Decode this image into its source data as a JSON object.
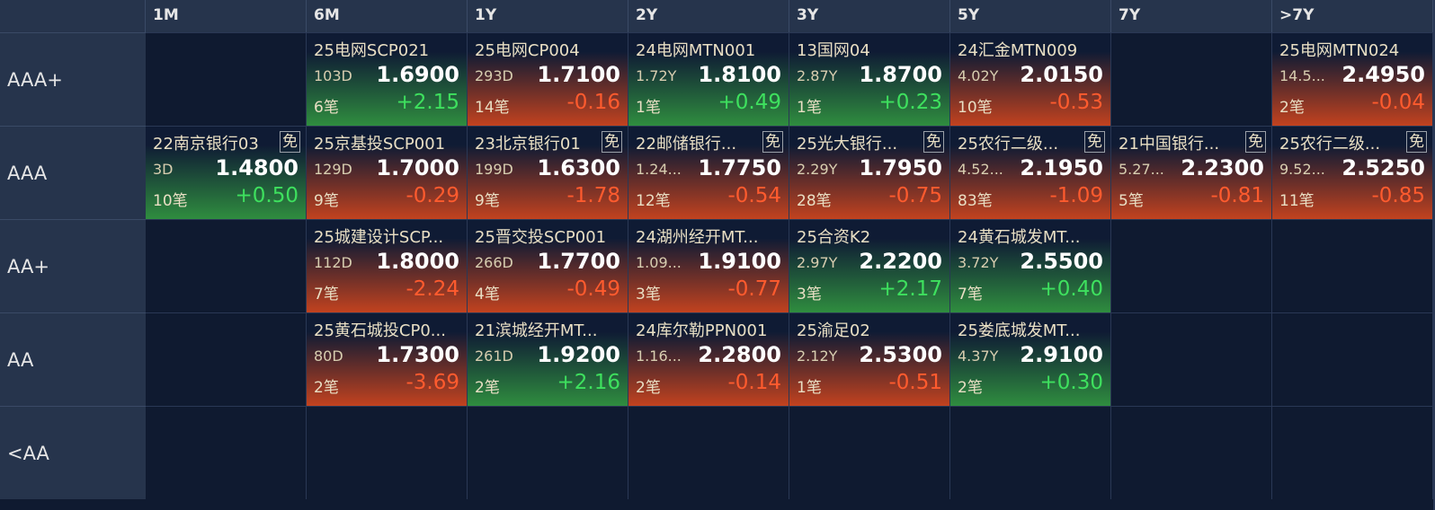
{
  "header": {
    "columns": [
      "1M",
      "6M",
      "1Y",
      "2Y",
      "3Y",
      "5Y",
      "7Y",
      ">7Y"
    ]
  },
  "rows": [
    {
      "label": "AAA+",
      "cells": [
        null,
        {
          "name": "25电网SCP021",
          "term": "103D",
          "price": "1.6900",
          "count": "6笔",
          "change": "+2.15"
        },
        {
          "name": "25电网CP004",
          "term": "293D",
          "price": "1.7100",
          "count": "14笔",
          "change": "-0.16"
        },
        {
          "name": "24电网MTN001",
          "term": "1.72Y",
          "price": "1.8100",
          "count": "1笔",
          "change": "+0.49"
        },
        {
          "name": "13国网04",
          "term": "2.87Y",
          "price": "1.8700",
          "count": "1笔",
          "change": "+0.23"
        },
        {
          "name": "24汇金MTN009",
          "term": "4.02Y",
          "price": "2.0150",
          "count": "10笔",
          "change": "-0.53"
        },
        null,
        {
          "name": "25电网MTN024",
          "term": "14.5...",
          "price": "2.4950",
          "count": "2笔",
          "change": "-0.04"
        }
      ]
    },
    {
      "label": "AAA",
      "cells": [
        {
          "name": "22南京银行03",
          "tag": "免",
          "term": "3D",
          "price": "1.4800",
          "count": "10笔",
          "change": "+0.50"
        },
        {
          "name": "25京基投SCP001",
          "term": "129D",
          "price": "1.7000",
          "count": "9笔",
          "change": "-0.29"
        },
        {
          "name": "23北京银行01",
          "tag": "免",
          "term": "199D",
          "price": "1.6300",
          "count": "9笔",
          "change": "-1.78"
        },
        {
          "name": "22邮储银行...",
          "tag": "免",
          "term": "1.24...",
          "price": "1.7750",
          "count": "12笔",
          "change": "-0.54"
        },
        {
          "name": "25光大银行...",
          "tag": "免",
          "term": "2.29Y",
          "price": "1.7950",
          "count": "28笔",
          "change": "-0.75"
        },
        {
          "name": "25农行二级...",
          "tag": "免",
          "term": "4.52...",
          "price": "2.1950",
          "count": "83笔",
          "change": "-1.09"
        },
        {
          "name": "21中国银行...",
          "tag": "免",
          "term": "5.27...",
          "price": "2.2300",
          "count": "5笔",
          "change": "-0.81"
        },
        {
          "name": "25农行二级...",
          "tag": "免",
          "term": "9.52...",
          "price": "2.5250",
          "count": "11笔",
          "change": "-0.85"
        }
      ]
    },
    {
      "label": "AA+",
      "cells": [
        null,
        {
          "name": "25城建设计SCP...",
          "term": "112D",
          "price": "1.8000",
          "count": "7笔",
          "change": "-2.24"
        },
        {
          "name": "25晋交投SCP001",
          "term": "266D",
          "price": "1.7700",
          "count": "4笔",
          "change": "-0.49"
        },
        {
          "name": "24湖州经开MT...",
          "term": "1.09...",
          "price": "1.9100",
          "count": "3笔",
          "change": "-0.77"
        },
        {
          "name": "25合资K2",
          "term": "2.97Y",
          "price": "2.2200",
          "count": "3笔",
          "change": "+2.17"
        },
        {
          "name": "24黄石城发MT...",
          "term": "3.72Y",
          "price": "2.5500",
          "count": "7笔",
          "change": "+0.40"
        },
        null,
        null
      ]
    },
    {
      "label": "AA",
      "cells": [
        null,
        {
          "name": "25黄石城投CP0...",
          "term": "80D",
          "price": "1.7300",
          "count": "2笔",
          "change": "-3.69"
        },
        {
          "name": "21滨城经开MT...",
          "term": "261D",
          "price": "1.9200",
          "count": "2笔",
          "change": "+2.16"
        },
        {
          "name": "24库尔勒PPN001",
          "term": "1.16...",
          "price": "2.2800",
          "count": "2笔",
          "change": "-0.14"
        },
        {
          "name": "25渝足02",
          "term": "2.12Y",
          "price": "2.5300",
          "count": "1笔",
          "change": "-0.51"
        },
        {
          "name": "25娄底城发MT...",
          "term": "4.37Y",
          "price": "2.9100",
          "count": "2笔",
          "change": "+0.30"
        },
        null,
        null
      ]
    },
    {
      "label": "<AA",
      "cells": [
        null,
        null,
        null,
        null,
        null,
        null,
        null,
        null
      ]
    }
  ]
}
